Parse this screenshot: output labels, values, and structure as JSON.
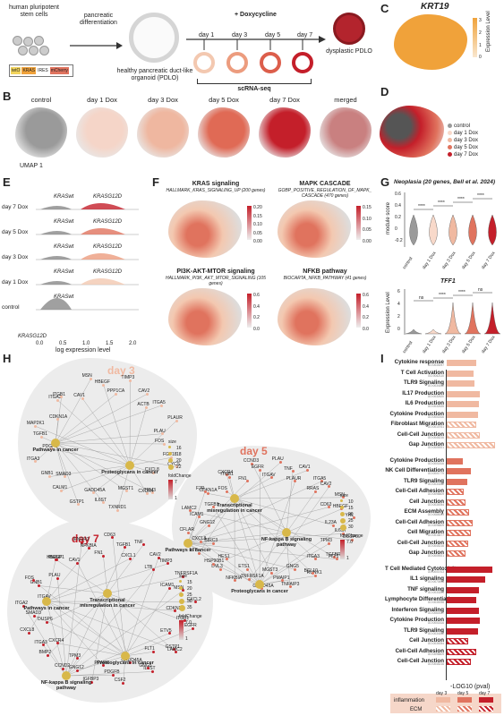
{
  "panels": {
    "a": "",
    "b": "B",
    "c": "C",
    "d": "D",
    "e": "E",
    "f": "F",
    "g": "G",
    "h": "H",
    "i": "I"
  },
  "schema": {
    "hpsc": "human pluripotent stem cells",
    "pancreatic": "pancreatic differentiation",
    "pdlo": "healthy pancreatic duct-like organoid (PDLO)",
    "dox": "+ Doxycycline",
    "days": [
      "day 1",
      "day 3",
      "day 5",
      "day 7"
    ],
    "scrna": "scRNA-seq",
    "dysplastic": "dysplastic PDLO",
    "construct": [
      "tetO",
      "KRAS",
      "IRES",
      "mCherry"
    ]
  },
  "krt19": {
    "title": "KRT19",
    "legend_label": "Expression Level",
    "ticks": [
      "3",
      "2",
      "1",
      "0"
    ]
  },
  "umap": {
    "titles": [
      "control",
      "day 1 Dox",
      "day 3 Dox",
      "day 5 Dox",
      "day 7 Dox",
      "merged"
    ],
    "axis": "UMAP 1"
  },
  "legend_d": [
    "control",
    "day 1 Dox",
    "day 3 Dox",
    "day 5 Dox",
    "day 7 Dox"
  ],
  "ridge": {
    "rows": [
      "day 7 Dox",
      "day 5 Dox",
      "day 3 Dox",
      "day 1 Dox",
      "control"
    ],
    "wt": "KRASwt",
    "g12d": "KRASG12D",
    "xlabel": "log expression level",
    "xticks": [
      "0.0",
      "0.5",
      "1.0",
      "1.5",
      "2.0"
    ]
  },
  "signatures": [
    {
      "title": "KRAS signaling",
      "subtitle": "HALLMARK_KRAS_SIGNALING_UP (200 genes)",
      "ticks": [
        "0.20",
        "0.15",
        "0.10",
        "0.05",
        "0.00"
      ]
    },
    {
      "title": "MAPK CASCADE",
      "subtitle": "GOBP_POSITIVE_REGULATION_OF_MAPK_ CASCADE (470 genes)",
      "ticks": [
        "0.15",
        "0.10",
        "0.05",
        "0.00"
      ]
    },
    {
      "title": "PI3K-AKT-MTOR signaling",
      "subtitle": "HALLMARK_PI3K_AKT_MTOR_SIGNALING (105 genes)",
      "ticks": [
        "0.6",
        "0.4",
        "0.2",
        "0.0"
      ]
    },
    {
      "title": "NFKB pathway",
      "subtitle": "BIOCARTA_NFKB_PATHWAY (41 genes)",
      "ticks": [
        "0.6",
        "0.4",
        "0.2",
        "0.0"
      ]
    }
  ],
  "violin_top": {
    "title": "Neoplasia (20 genes, Bell et al. 2024)",
    "ylabel": "module score",
    "yticks": [
      "0.6",
      "0.4",
      "0.2",
      "0",
      "-0.2"
    ],
    "sig": [
      "****",
      "****",
      "****",
      "****"
    ]
  },
  "violin_bot": {
    "title": "TFF1",
    "ylabel": "Expression Level",
    "yticks": [
      "6",
      "4",
      "2",
      "0"
    ],
    "sig": [
      "ns",
      "****",
      "****",
      "ns"
    ]
  },
  "violin_x": [
    "control",
    "day 1 Dox",
    "day 3 Dox",
    "day 5 Dox",
    "day 7 Dox"
  ],
  "networks": [
    {
      "day": "day 3",
      "genes": [
        "FOS",
        "FGF18",
        "CYCS",
        "CXCL8",
        "TPM3",
        "CXCR4",
        "MGST1",
        "TXNRD1",
        "IL6ST",
        "GADD45A",
        "GSTP1",
        "CALM1",
        "SMAD3",
        "GNB1",
        "ITGA3",
        "PDGFB",
        "TGFB1",
        "MAP2K1",
        "CDKN1A",
        "ITGA2",
        "ITGB1",
        "CAV1",
        "MSN",
        "HBEGF",
        "PPP1CA",
        "TIMP3",
        "CAV2",
        "ACTB",
        "ITGA5",
        "PLAUR",
        "PLAU"
      ],
      "hubs": [
        "Pathways in cancer",
        "Proteoglycans in cancer"
      ],
      "size_ticks": [
        "16",
        "18",
        "20",
        "22"
      ],
      "fc_ticks": [
        "7",
        "1"
      ]
    },
    {
      "day": "day 5",
      "genes": [
        "IL23A",
        "IL6ST",
        "DUSP6",
        "TPM3",
        "TGFBR2",
        "FLT1",
        "ITGA3",
        "RUNX1",
        "BCL10",
        "GNG5",
        "TNFAIP3",
        "PMAIP1",
        "MGST3",
        "GADD45A",
        "TNFRSF1A",
        "ETS1",
        "NFKBIA",
        "DVL3",
        "HES1",
        "HSP90B1",
        "LTB",
        "BIRC3",
        "CXCL8",
        "CFLAR",
        "GNG12",
        "ICAM1",
        "LAMC2",
        "TGFB1",
        "CDKN1A",
        "F2R",
        "FOS",
        "CXCR4",
        "ITGB1",
        "FN1",
        "CCND3",
        "EGFR",
        "ITGAV",
        "PLAU",
        "TNF",
        "PLAUR",
        "CAV1",
        "ITGA5",
        "RRAS",
        "CAV2",
        "MSN",
        "CD63",
        "HBEGF",
        "YHL"
      ],
      "hubs": [
        "Transcriptional misregulation in cancer",
        "Pathways in cancer",
        "NF-kappa B signaling pathway",
        "Proteoglycans in cancer"
      ],
      "size_ticks": [
        "10",
        "15",
        "20",
        "25",
        "30"
      ],
      "fc_ticks": [
        "7.0",
        "1"
      ]
    },
    {
      "day": "day 7",
      "genes": [
        "CDKN2B",
        "ITGB1",
        "EGFR",
        "ETV5",
        "GSTP1",
        "LAMC2",
        "FLT1",
        "IL6ST",
        "GNG5",
        "GADD45A",
        "CSF2",
        "PDGFB",
        "PPARG",
        "IGFBP3",
        "GNG12",
        "TPM3",
        "CCND2",
        "BMP2",
        "CXCR4",
        "ITGA3",
        "CXCL8",
        "DUSP6",
        "SMAD3",
        "ITGA2",
        "ITGAV",
        "GNB1",
        "FOS",
        "PLAU",
        "HBEGF",
        "PMAIP1",
        "CAV1",
        "IFNGR2",
        "NFKBIA",
        "FN1",
        "CD63",
        "TGFB1",
        "CXCL1",
        "TNF",
        "CAV2",
        "LTB",
        "TIMP3",
        "TNFRSF1A",
        "ICAM1",
        "MSN",
        "CXCL2"
      ],
      "hubs": [
        "Pathways in cancer",
        "Transcriptional misregulation in cancer",
        "Proteoglycans in cancer",
        "NF-kappa B signaling pathway"
      ],
      "size_ticks": [
        "15",
        "20",
        "25",
        "30",
        "35"
      ],
      "fc_ticks": [
        "7.0",
        "1"
      ]
    }
  ],
  "size_label": "size",
  "fc_label": "foldChange",
  "go_terms": [
    {
      "label": "Cytokine response",
      "id": "GO:0034097",
      "len": 0.55,
      "cat": "inf",
      "day": 3
    },
    {
      "label": "T Cell Activation",
      "id": "GO:0042110",
      "len": 0.5,
      "cat": "inf",
      "day": 3
    },
    {
      "label": "TLR9 Signaling",
      "id": "GO:0034162",
      "len": 0.52,
      "cat": "inf",
      "day": 3
    },
    {
      "label": "IL17 Production",
      "id": "GO:0032620",
      "len": 0.62,
      "cat": "inf",
      "day": 3
    },
    {
      "label": "IL6 Production",
      "id": "GO:0032635",
      "len": 0.6,
      "cat": "inf",
      "day": 3
    },
    {
      "label": "Cytokine Production",
      "id": "GO:0001816",
      "len": 0.58,
      "cat": "inf",
      "day": 3
    },
    {
      "label": "Fibroblast Migration",
      "id": "GO:0010761",
      "len": 0.55,
      "cat": "ecm",
      "day": 3
    },
    {
      "label": "Cell-Cell Junction",
      "id": "GO:0045216",
      "len": 0.62,
      "cat": "ecm",
      "day": 3
    },
    {
      "label": "Gap Junction",
      "id": "GO:0005921",
      "len": 0.9,
      "cat": "ecm",
      "day": 3
    },
    {
      "label": "Cytokine Production",
      "id": "GO:0001816",
      "len": 0.3,
      "cat": "inf",
      "day": 5
    },
    {
      "label": "NK Cell Differentiation",
      "id": "GO:0001779",
      "len": 0.45,
      "cat": "inf",
      "day": 5
    },
    {
      "label": "TLR9 Signaling",
      "id": "GO:0034162",
      "len": 0.38,
      "cat": "inf",
      "day": 5
    },
    {
      "label": "Cell-Cell Adhesion",
      "id": "GO:0098609",
      "len": 0.32,
      "cat": "ecm",
      "day": 5
    },
    {
      "label": "Cell Junction",
      "id": "GO:0030054",
      "len": 0.35,
      "cat": "ecm",
      "day": 5
    },
    {
      "label": "ECM Assembly",
      "id": "GO:0085029",
      "len": 0.42,
      "cat": "ecm",
      "day": 5
    },
    {
      "label": "Cell-Cell Adhesion",
      "id": "GO:0098609",
      "len": 0.48,
      "cat": "ecm",
      "day": 5
    },
    {
      "label": "Cell Migration",
      "id": "GO:0016477",
      "len": 0.45,
      "cat": "ecm",
      "day": 5
    },
    {
      "label": "Cell-Cell Junction",
      "id": "GO:0045216",
      "len": 0.4,
      "cat": "ecm",
      "day": 5
    },
    {
      "label": "Gap Junction",
      "id": "GO:0005921",
      "len": 0.35,
      "cat": "ecm",
      "day": 5
    },
    {
      "label": "T Cell Mediated Cytotoxicity",
      "id": "GO:0001913",
      "len": 0.85,
      "cat": "inf",
      "day": 7
    },
    {
      "label": "IL1 signaling",
      "id": "GO:0070498",
      "len": 0.72,
      "cat": "inf",
      "day": 7
    },
    {
      "label": "TNF signaling",
      "id": "GO:0033209",
      "len": 0.6,
      "cat": "inf",
      "day": 7
    },
    {
      "label": "Lymphocyte Differentiation",
      "id": "GO:0030098",
      "len": 0.55,
      "cat": "inf",
      "day": 7
    },
    {
      "label": "Interferon Signaling",
      "id": "GO:0060337",
      "len": 0.6,
      "cat": "inf",
      "day": 7
    },
    {
      "label": "Cytokine Production",
      "id": "GO:0001816",
      "len": 0.62,
      "cat": "inf",
      "day": 7
    },
    {
      "label": "TLR9 Signaling",
      "id": "GO:0034162",
      "len": 0.58,
      "cat": "inf",
      "day": 7
    },
    {
      "label": "Cell Junction",
      "id": "GO:0030054",
      "len": 0.4,
      "cat": "ecm",
      "day": 7
    },
    {
      "label": "Cell-Cell Adhesion",
      "id": "GO:0098609",
      "len": 0.55,
      "cat": "ecm",
      "day": 7
    },
    {
      "label": "Cell-Cell Junction",
      "id": "GO:0045216",
      "len": 0.45,
      "cat": "ecm",
      "day": 7
    }
  ],
  "go_xlabel": "-LOG10 (pval)",
  "go_legend": {
    "rows": [
      "inflammation",
      "ECM"
    ],
    "cols": [
      "day 3",
      "day 5",
      "day 7"
    ]
  },
  "colors": {
    "day3": "#f0b9a1",
    "day5": "#e0735e",
    "day7": "#c41f2a",
    "control": "#9a9a9a",
    "krt19": "#f0a23a"
  }
}
